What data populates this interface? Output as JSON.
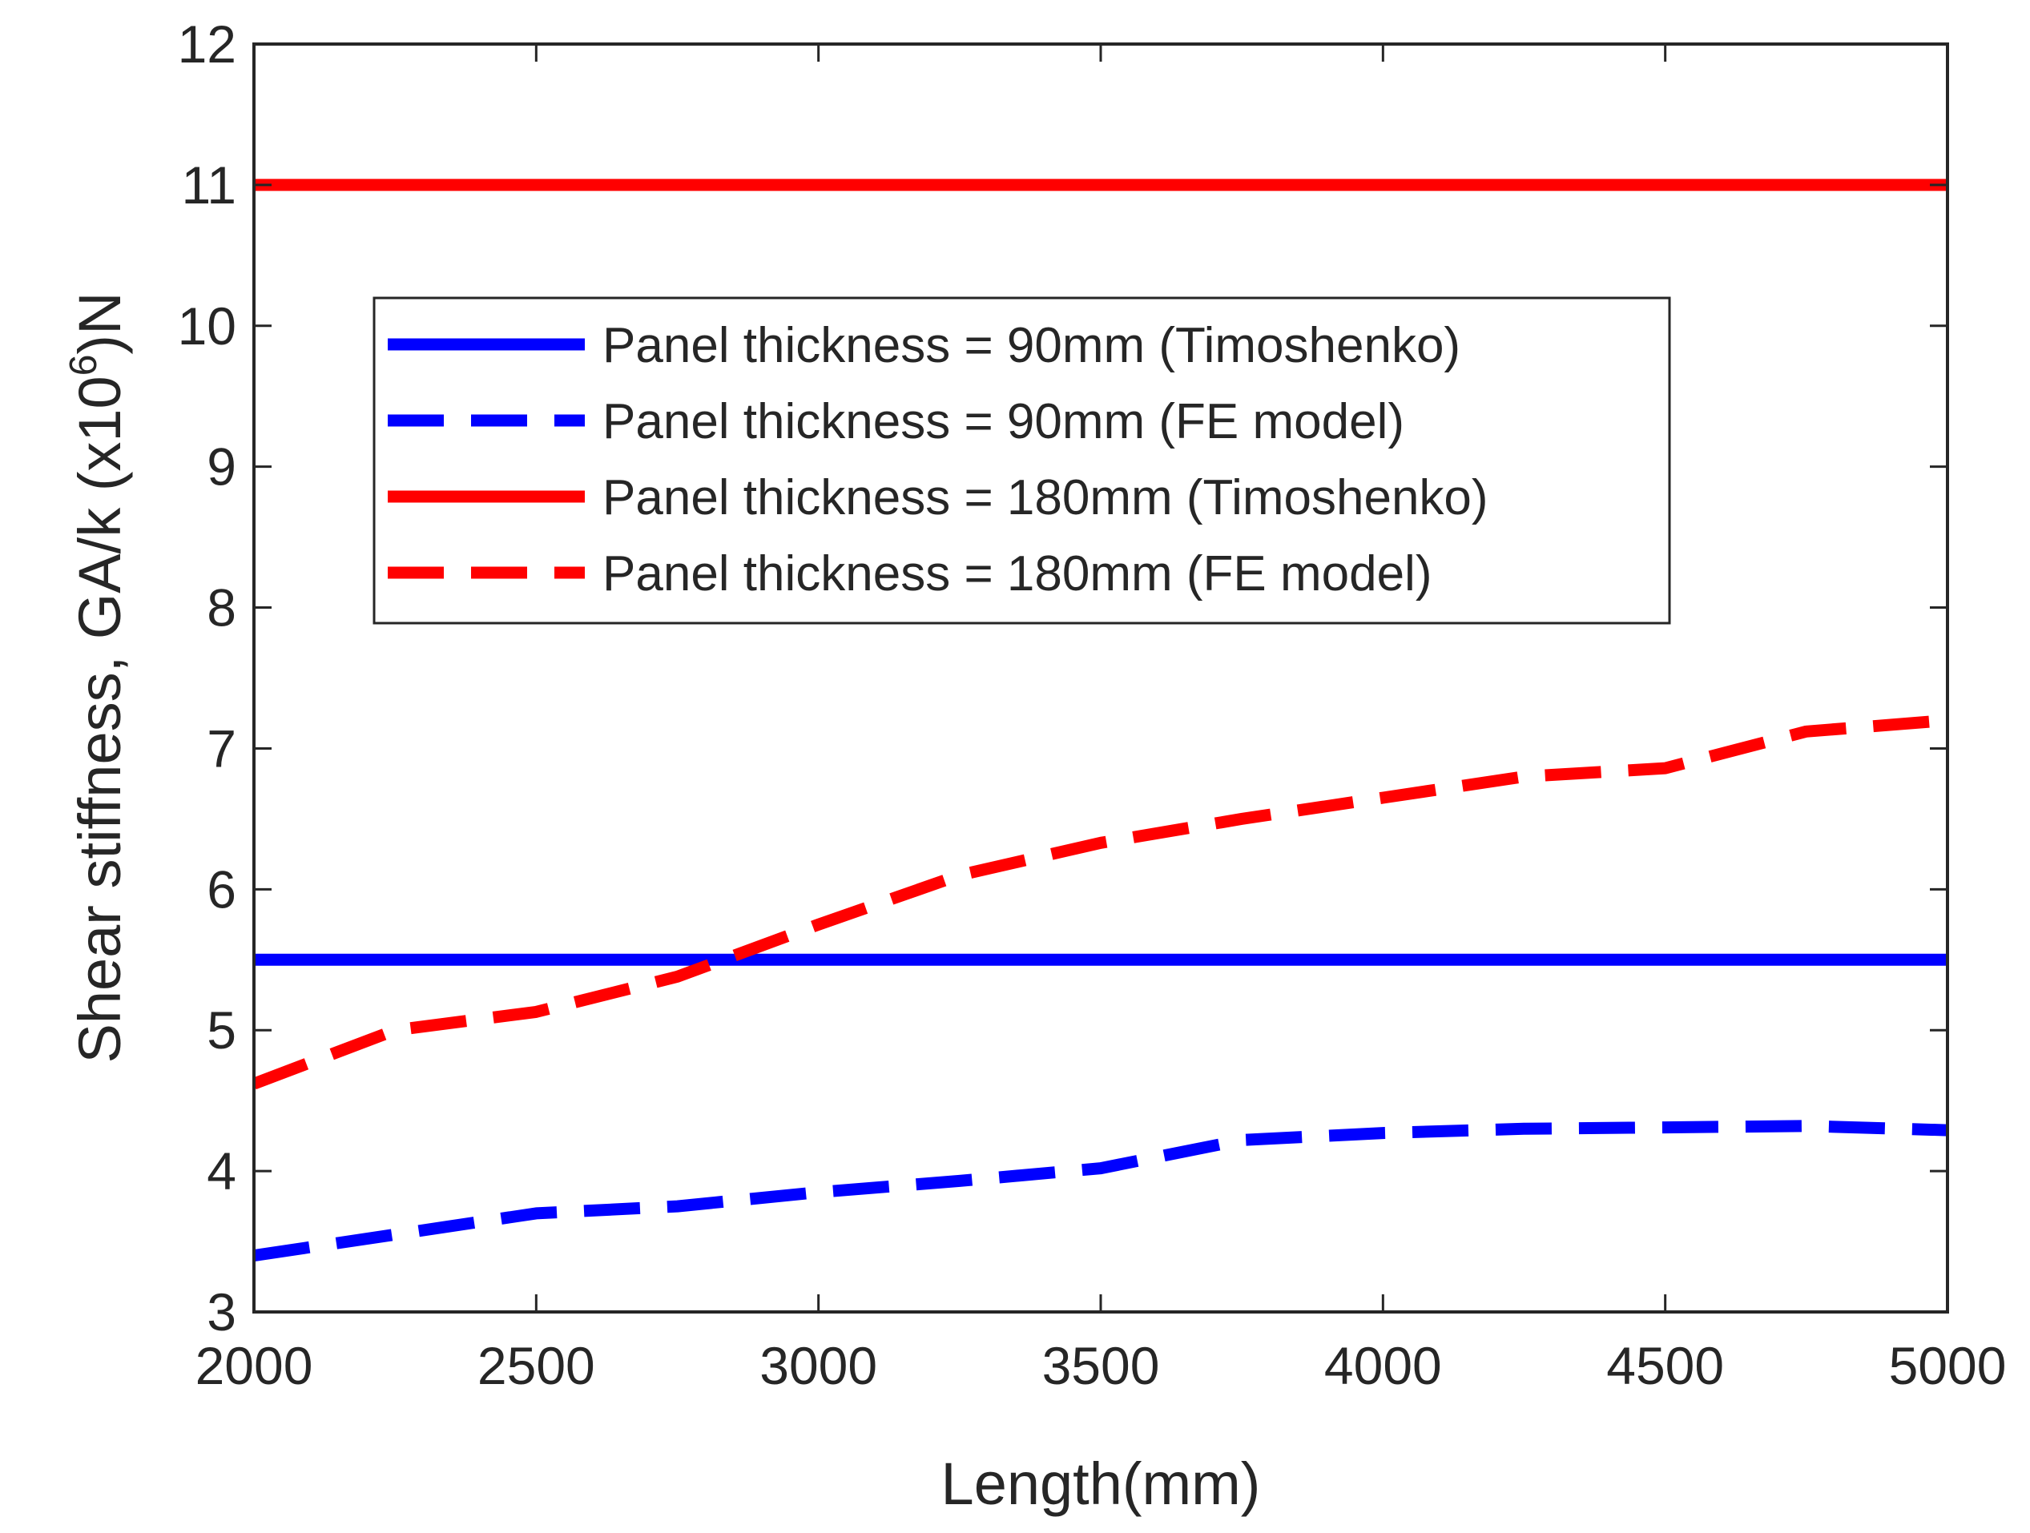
{
  "chart_data": {
    "type": "line",
    "title": "",
    "xlabel": "Length(mm)",
    "ylabel": {
      "main": "Shear stiffness, GA/k (x10",
      "exponent": "6",
      "suffix": ")N"
    },
    "xlim": [
      2000,
      5000
    ],
    "ylim": [
      3,
      12
    ],
    "xticks": [
      2000,
      2500,
      3000,
      3500,
      4000,
      4500,
      5000
    ],
    "yticks": [
      3,
      4,
      5,
      6,
      7,
      8,
      9,
      10,
      11,
      12
    ],
    "grid": false,
    "legend_position": "upper-center",
    "series": [
      {
        "name": "Panel thickness = 90mm (Timoshenko)",
        "color": "#0000ff",
        "style": "solid",
        "x": [
          2000,
          5000
        ],
        "y": [
          5.5,
          5.5
        ]
      },
      {
        "name": "Panel thickness = 90mm (FE model)",
        "color": "#0000ff",
        "style": "dashed",
        "x": [
          2000,
          2250,
          2500,
          2750,
          3000,
          3250,
          3500,
          3750,
          4000,
          4250,
          4500,
          4750,
          5000
        ],
        "y": [
          3.4,
          3.55,
          3.7,
          3.75,
          3.85,
          3.93,
          4.02,
          4.22,
          4.27,
          4.3,
          4.31,
          4.32,
          4.29
        ]
      },
      {
        "name": "Panel thickness = 180mm (Timoshenko)",
        "color": "#ff0000",
        "style": "solid",
        "x": [
          2000,
          5000
        ],
        "y": [
          11.0,
          11.0
        ]
      },
      {
        "name": "Panel thickness = 180mm (FE model)",
        "color": "#ff0000",
        "style": "dashed",
        "x": [
          2000,
          2250,
          2500,
          2750,
          3000,
          3250,
          3500,
          3750,
          4000,
          4250,
          4500,
          4750,
          5000
        ],
        "y": [
          4.62,
          5.0,
          5.13,
          5.38,
          5.75,
          6.1,
          6.33,
          6.5,
          6.65,
          6.8,
          6.86,
          7.12,
          7.2
        ]
      }
    ]
  }
}
